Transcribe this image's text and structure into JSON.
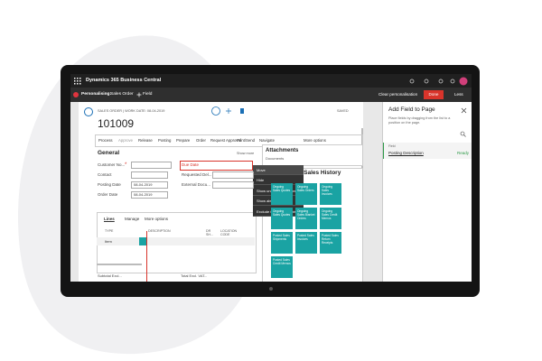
{
  "app": {
    "title": "Dynamics 365 Business Central"
  },
  "personalise_bar": {
    "label": "Personalising:",
    "page": "Sales Order",
    "add_field": "Field",
    "clear": "Clear personalisation",
    "done": "Done",
    "less": "Less"
  },
  "page": {
    "caption": "SALES ORDER | WORK DATE: 08-04-2019",
    "number": "101009",
    "status": "SAVED",
    "actions": [
      "Process",
      "Approve",
      "Release",
      "Posting",
      "Prepare",
      "Order",
      "Request Approval",
      "Print/Send",
      "Navigate",
      "More options"
    ],
    "general": {
      "title": "General",
      "show_more": "Show more",
      "left_fields": [
        {
          "label": "Customer No...",
          "value": ""
        },
        {
          "label": "Contact",
          "value": ""
        },
        {
          "label": "Posting Date",
          "value": "08-04-2019"
        },
        {
          "label": "Order Date",
          "value": "08-04-2019"
        }
      ],
      "right_fields": [
        {
          "label": "Due Date"
        },
        {
          "label": "Requested Del..."
        },
        {
          "label": "External Docu..."
        }
      ]
    },
    "context_menu": [
      "Move",
      "Hide",
      "Show under \"Show more\"",
      "Show always",
      "Exclude from Quick Entry"
    ],
    "lines": {
      "tabs": [
        "Lines",
        "Manage",
        "More options"
      ],
      "columns": [
        "TYPE",
        "DESCRIPTION",
        "DR SH...",
        "LOCATION CODE"
      ],
      "row_type": "Item",
      "subtotal": "Subtotal Excl...",
      "total": "Total Excl. VAT..."
    },
    "attachments": {
      "title": "Attachments",
      "item": "Documents"
    },
    "history": {
      "title": "Customer Sales History",
      "tiles": [
        "Ongoing Sales Quotes",
        "Ongoing Sales Orders",
        "Ongoing Sales Invoices",
        "Ongoing Sales Quotes",
        "Ongoing Sales Blanket Orders",
        "Ongoing Sales Credit Memos",
        "Posted Sales Shipments",
        "Posted Sales Invoices",
        "Posted Sales Return Receipts",
        "Posted Sales Credit Memos"
      ]
    }
  },
  "panel": {
    "title": "Add Field to Page",
    "description": "Place fields by dragging from the list to a position on the page.",
    "column": "Field",
    "field": "Posting Description",
    "status": "Ready"
  }
}
